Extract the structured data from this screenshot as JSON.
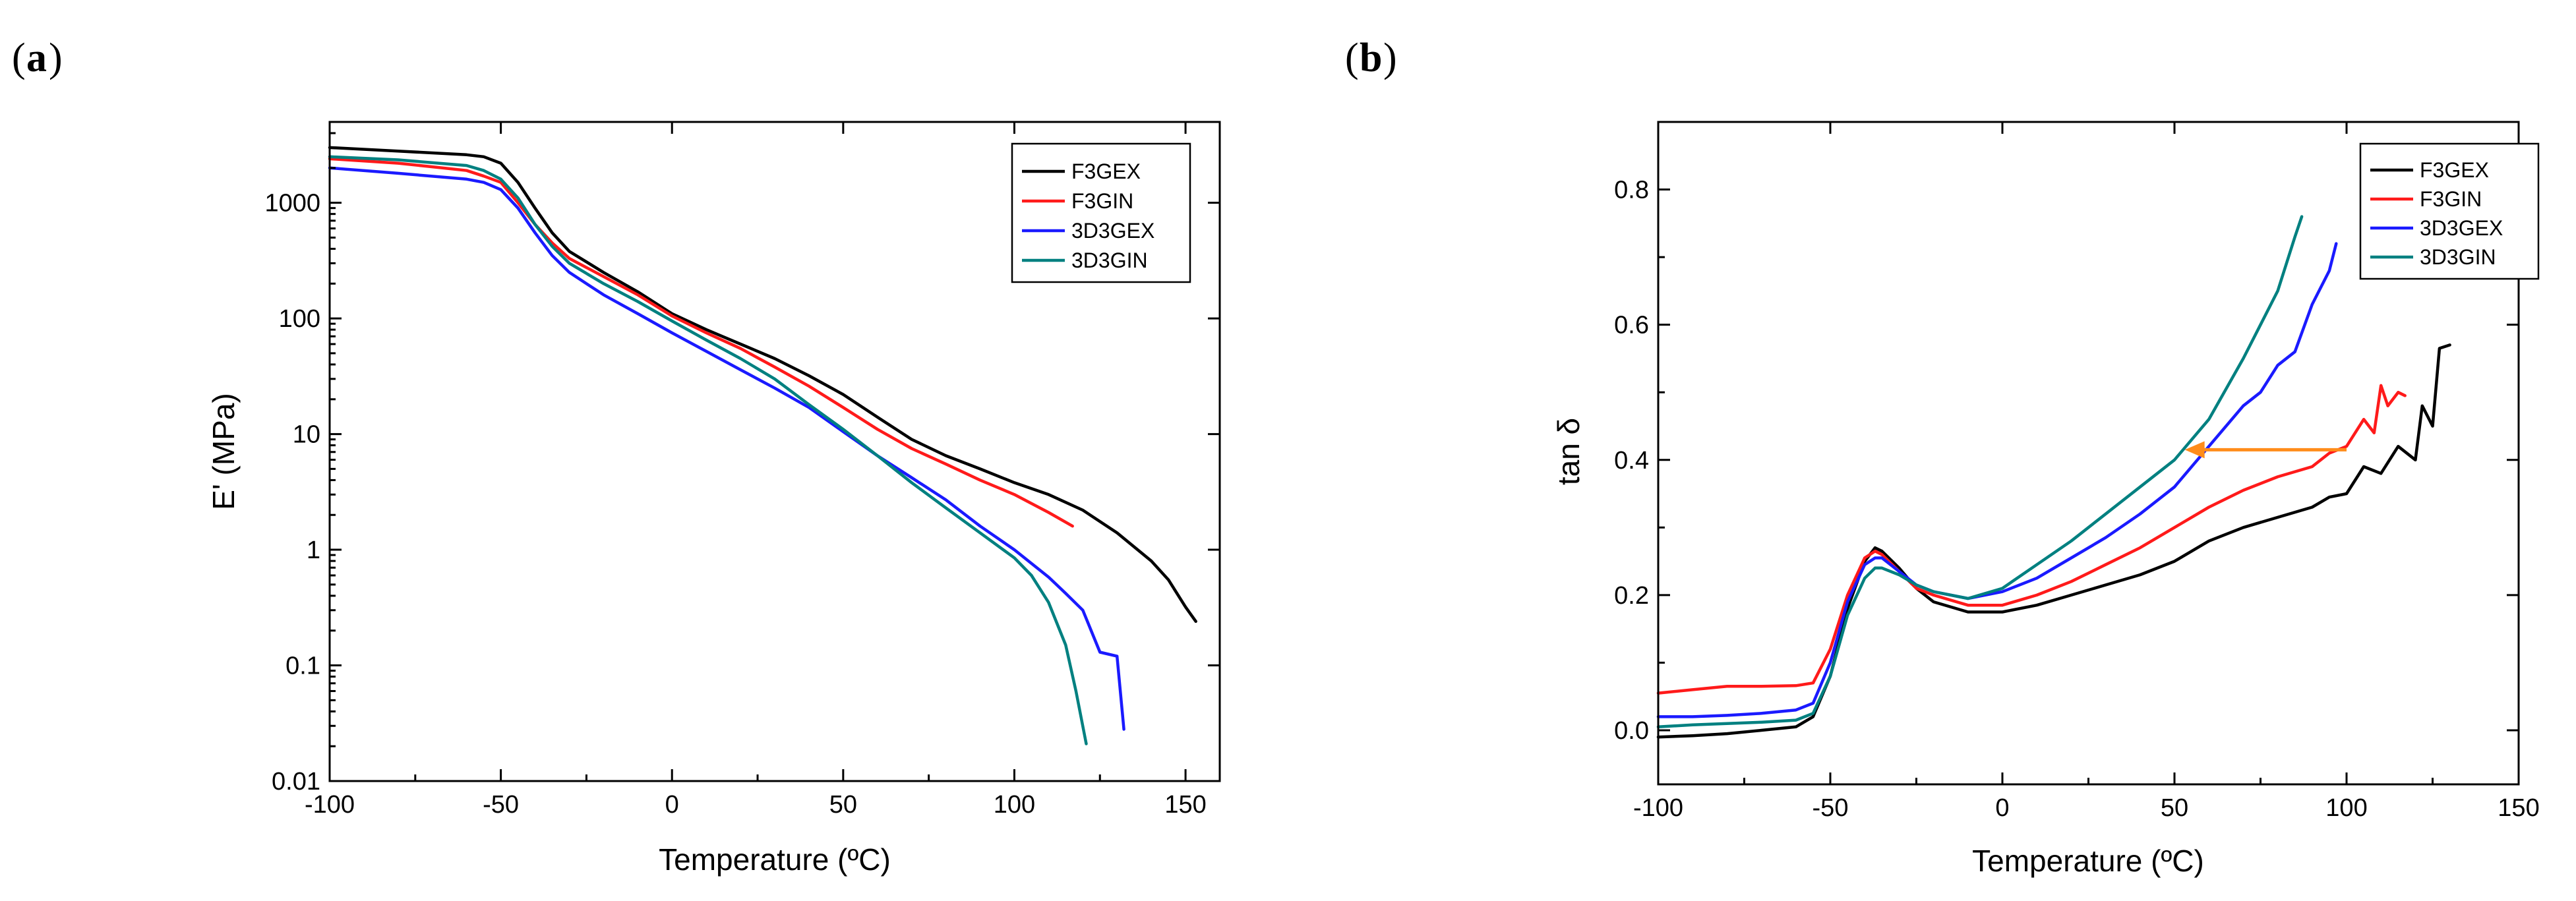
{
  "colors": {
    "F3GEX": "#000000",
    "F3GIN": "#ff1a1a",
    "3D3GEX": "#1a1aff",
    "3D3GIN": "#008080",
    "annotation_arrow": "#ff8c1a"
  },
  "chart_data": [
    {
      "panel_label": "a",
      "type": "line",
      "yscale": "log",
      "title": "",
      "xlabel": "Temperature (ºC)",
      "ylabel": "E' (MPa)",
      "xlim": [
        -100,
        160
      ],
      "ylim": [
        0.01,
        5000
      ],
      "xticks": [
        -100,
        -50,
        0,
        50,
        100,
        150
      ],
      "xtick_labels": [
        "-100",
        "-50",
        "0",
        "50",
        "100",
        "150"
      ],
      "yticks": [
        0.01,
        0.1,
        1,
        10,
        100,
        1000
      ],
      "ytick_labels": [
        "0.01",
        "0.1",
        "1",
        "10",
        "100",
        "1000"
      ],
      "legend_position": "top-right",
      "series": [
        {
          "name": "F3GEX",
          "color_key": "F3GEX",
          "x": [
            -100,
            -80,
            -60,
            -55,
            -50,
            -45,
            -40,
            -35,
            -30,
            -20,
            -10,
            0,
            10,
            20,
            30,
            40,
            50,
            60,
            70,
            80,
            90,
            100,
            110,
            120,
            130,
            140,
            145,
            150,
            153
          ],
          "y": [
            3000,
            2800,
            2600,
            2500,
            2200,
            1500,
            900,
            550,
            380,
            250,
            170,
            110,
            80,
            60,
            45,
            32,
            22,
            14,
            9,
            6.5,
            5.0,
            3.8,
            3.0,
            2.2,
            1.4,
            0.8,
            0.55,
            0.32,
            0.24
          ]
        },
        {
          "name": "F3GIN",
          "color_key": "F3GIN",
          "x": [
            -100,
            -80,
            -60,
            -55,
            -50,
            -45,
            -40,
            -35,
            -30,
            -20,
            -10,
            0,
            10,
            20,
            30,
            40,
            50,
            60,
            70,
            80,
            90,
            100,
            110,
            117
          ],
          "y": [
            2400,
            2200,
            1900,
            1700,
            1500,
            1000,
            650,
            450,
            330,
            230,
            160,
            105,
            75,
            55,
            38,
            26,
            17,
            11,
            7.5,
            5.5,
            4.0,
            3.0,
            2.1,
            1.6
          ]
        },
        {
          "name": "3D3GEX",
          "color_key": "3D3GEX",
          "x": [
            -100,
            -80,
            -60,
            -55,
            -50,
            -45,
            -40,
            -35,
            -30,
            -20,
            -10,
            0,
            10,
            20,
            30,
            40,
            50,
            60,
            70,
            80,
            90,
            100,
            110,
            115,
            120,
            125,
            130,
            132
          ],
          "y": [
            2000,
            1800,
            1600,
            1500,
            1300,
            900,
            550,
            350,
            250,
            160,
            110,
            75,
            52,
            36,
            25,
            17,
            10.5,
            6.5,
            4.2,
            2.7,
            1.6,
            1.0,
            0.58,
            0.42,
            0.3,
            0.13,
            0.12,
            0.028
          ]
        },
        {
          "name": "3D3GIN",
          "color_key": "3D3GIN",
          "x": [
            -100,
            -80,
            -60,
            -55,
            -50,
            -45,
            -40,
            -35,
            -30,
            -20,
            -10,
            0,
            10,
            20,
            30,
            40,
            50,
            60,
            70,
            80,
            90,
            100,
            105,
            110,
            115,
            118,
            121
          ],
          "y": [
            2500,
            2350,
            2100,
            1900,
            1600,
            1100,
            650,
            420,
            300,
            200,
            140,
            95,
            65,
            45,
            30,
            18,
            11,
            6.5,
            3.8,
            2.3,
            1.4,
            0.85,
            0.6,
            0.35,
            0.15,
            0.06,
            0.021
          ]
        }
      ]
    },
    {
      "panel_label": "b",
      "type": "line",
      "yscale": "linear",
      "title": "",
      "xlabel": "Temperature (ºC)",
      "ylabel": "tan δ",
      "xlim": [
        -100,
        150
      ],
      "ylim": [
        -0.08,
        0.9
      ],
      "xticks": [
        -100,
        -50,
        0,
        50,
        100,
        150
      ],
      "xtick_labels": [
        "-100",
        "-50",
        "0",
        "50",
        "100",
        "150"
      ],
      "yticks": [
        0.0,
        0.2,
        0.4,
        0.6,
        0.8
      ],
      "ytick_labels": [
        "0.0",
        "0.2",
        "0.4",
        "0.6",
        "0.8"
      ],
      "legend_position": "top-right",
      "annotation": {
        "type": "arrow",
        "from": [
          100,
          0.415
        ],
        "to": [
          53,
          0.415
        ],
        "color_key": "annotation_arrow"
      },
      "series": [
        {
          "name": "F3GEX",
          "color_key": "F3GEX",
          "x": [
            -100,
            -90,
            -80,
            -70,
            -60,
            -55,
            -50,
            -45,
            -40,
            -37,
            -35,
            -30,
            -25,
            -20,
            -10,
            0,
            10,
            20,
            30,
            40,
            50,
            60,
            70,
            80,
            90,
            95,
            100,
            105,
            110,
            115,
            120,
            122,
            125,
            127,
            130
          ],
          "y": [
            -0.01,
            -0.008,
            -0.005,
            0.0,
            0.005,
            0.02,
            0.08,
            0.18,
            0.25,
            0.27,
            0.265,
            0.24,
            0.21,
            0.19,
            0.175,
            0.175,
            0.185,
            0.2,
            0.215,
            0.23,
            0.25,
            0.28,
            0.3,
            0.315,
            0.33,
            0.345,
            0.35,
            0.39,
            0.38,
            0.42,
            0.4,
            0.48,
            0.45,
            0.565,
            0.57
          ]
        },
        {
          "name": "F3GIN",
          "color_key": "F3GIN",
          "x": [
            -100,
            -90,
            -80,
            -70,
            -60,
            -55,
            -50,
            -45,
            -40,
            -37,
            -35,
            -30,
            -25,
            -20,
            -10,
            0,
            10,
            20,
            30,
            40,
            50,
            60,
            70,
            80,
            90,
            95,
            100,
            105,
            108,
            110,
            112,
            115,
            117
          ],
          "y": [
            0.055,
            0.06,
            0.065,
            0.065,
            0.066,
            0.07,
            0.12,
            0.2,
            0.255,
            0.265,
            0.26,
            0.235,
            0.21,
            0.2,
            0.185,
            0.185,
            0.2,
            0.22,
            0.245,
            0.27,
            0.3,
            0.33,
            0.355,
            0.375,
            0.39,
            0.41,
            0.42,
            0.46,
            0.44,
            0.51,
            0.48,
            0.5,
            0.495
          ]
        },
        {
          "name": "3D3GEX",
          "color_key": "3D3GEX",
          "x": [
            -100,
            -90,
            -80,
            -70,
            -60,
            -55,
            -50,
            -45,
            -40,
            -37,
            -35,
            -30,
            -25,
            -20,
            -10,
            0,
            10,
            20,
            30,
            40,
            50,
            60,
            70,
            75,
            80,
            85,
            90,
            95,
            97
          ],
          "y": [
            0.02,
            0.02,
            0.022,
            0.025,
            0.03,
            0.04,
            0.1,
            0.19,
            0.245,
            0.255,
            0.255,
            0.235,
            0.215,
            0.205,
            0.195,
            0.205,
            0.225,
            0.255,
            0.285,
            0.32,
            0.36,
            0.42,
            0.48,
            0.5,
            0.54,
            0.56,
            0.63,
            0.68,
            0.72
          ]
        },
        {
          "name": "3D3GIN",
          "color_key": "3D3GIN",
          "x": [
            -100,
            -90,
            -80,
            -70,
            -60,
            -55,
            -50,
            -45,
            -40,
            -37,
            -35,
            -30,
            -25,
            -20,
            -10,
            0,
            10,
            20,
            30,
            40,
            50,
            60,
            70,
            75,
            80,
            85,
            87
          ],
          "y": [
            0.005,
            0.008,
            0.01,
            0.012,
            0.015,
            0.025,
            0.08,
            0.17,
            0.225,
            0.24,
            0.24,
            0.23,
            0.215,
            0.205,
            0.195,
            0.21,
            0.245,
            0.28,
            0.32,
            0.36,
            0.4,
            0.46,
            0.55,
            0.6,
            0.65,
            0.73,
            0.76
          ]
        }
      ]
    }
  ]
}
